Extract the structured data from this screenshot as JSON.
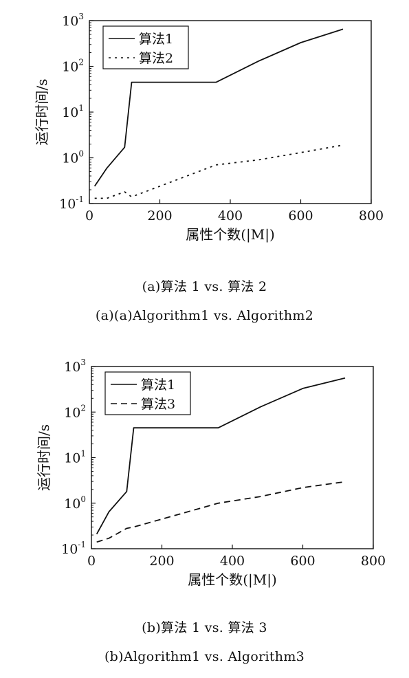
{
  "charts": [
    {
      "type": "line",
      "ylabel": "运行时间/s",
      "xlabel": "属性个数(|M|)",
      "xlim": [
        0,
        800
      ],
      "ylim": [
        0.1,
        1000
      ],
      "yscale": "log",
      "xticks": [
        0,
        200,
        400,
        600,
        800
      ],
      "yticks": [
        {
          "value": 0.1,
          "base": "10",
          "exp": "-1"
        },
        {
          "value": 1,
          "base": "10",
          "exp": "0"
        },
        {
          "value": 10,
          "base": "10",
          "exp": "1"
        },
        {
          "value": 100,
          "base": "10",
          "exp": "2"
        },
        {
          "value": 1000,
          "base": "10",
          "exp": "3"
        }
      ],
      "grid": false,
      "legend_position": "top-left",
      "series": [
        {
          "name": "算法1",
          "style": "solid",
          "x": [
            15,
            50,
            100,
            120,
            360,
            480,
            600,
            720
          ],
          "y": [
            0.24,
            0.6,
            1.7,
            45,
            45,
            130,
            330,
            650
          ]
        },
        {
          "name": "算法2",
          "style": "dotted",
          "x": [
            15,
            50,
            100,
            120,
            360,
            480,
            600,
            720
          ],
          "y": [
            0.13,
            0.13,
            0.18,
            0.14,
            0.7,
            0.9,
            1.3,
            1.9
          ]
        }
      ],
      "caption_cn": "(a)算法 1 vs. 算法 2",
      "caption_en": "(a)(a)Algorithm1  vs.  Algorithm2"
    },
    {
      "type": "line",
      "ylabel": "运行时间/s",
      "xlabel": "属性个数(|M|)",
      "xlim": [
        0,
        800
      ],
      "ylim": [
        0.1,
        1000
      ],
      "yscale": "log",
      "xticks": [
        0,
        200,
        400,
        600,
        800
      ],
      "yticks": [
        {
          "value": 0.1,
          "base": "10",
          "exp": "-1"
        },
        {
          "value": 1,
          "base": "10",
          "exp": "0"
        },
        {
          "value": 10,
          "base": "10",
          "exp": "1"
        },
        {
          "value": 100,
          "base": "10",
          "exp": "2"
        },
        {
          "value": 1000,
          "base": "10",
          "exp": "3"
        }
      ],
      "grid": false,
      "legend_position": "top-left",
      "series": [
        {
          "name": "算法1",
          "style": "solid",
          "x": [
            15,
            50,
            100,
            120,
            360,
            480,
            600,
            720
          ],
          "y": [
            0.21,
            0.65,
            1.8,
            45,
            45,
            130,
            330,
            560
          ]
        },
        {
          "name": "算法3",
          "style": "dashed",
          "x": [
            15,
            50,
            100,
            120,
            360,
            480,
            600,
            720
          ],
          "y": [
            0.14,
            0.17,
            0.28,
            0.3,
            1.0,
            1.4,
            2.2,
            2.95
          ]
        }
      ],
      "caption_cn": "(b)算法 1 vs.  算法 3",
      "caption_en": "(b)Algorithm1  vs.  Algorithm3"
    }
  ],
  "chart_data": [
    {
      "type": "line",
      "xlabel": "属性个数(|M|)",
      "ylabel": "运行时间/s",
      "xlim": [
        0,
        800
      ],
      "ylim": [
        0.1,
        1000
      ],
      "yscale": "log",
      "grid": false,
      "legend_position": "top-left",
      "series": [
        {
          "name": "算法1",
          "x": [
            15,
            50,
            100,
            120,
            360,
            480,
            600,
            720
          ],
          "y": [
            0.24,
            0.6,
            1.7,
            45,
            45,
            130,
            330,
            650
          ]
        },
        {
          "name": "算法2",
          "x": [
            15,
            50,
            100,
            120,
            360,
            480,
            600,
            720
          ],
          "y": [
            0.13,
            0.13,
            0.18,
            0.14,
            0.7,
            0.9,
            1.3,
            1.9
          ]
        }
      ]
    },
    {
      "type": "line",
      "xlabel": "属性个数(|M|)",
      "ylabel": "运行时间/s",
      "xlim": [
        0,
        800
      ],
      "ylim": [
        0.1,
        1000
      ],
      "yscale": "log",
      "grid": false,
      "legend_position": "top-left",
      "series": [
        {
          "name": "算法1",
          "x": [
            15,
            50,
            100,
            120,
            360,
            480,
            600,
            720
          ],
          "y": [
            0.21,
            0.65,
            1.8,
            45,
            45,
            130,
            330,
            560
          ]
        },
        {
          "name": "算法3",
          "x": [
            15,
            50,
            100,
            120,
            360,
            480,
            600,
            720
          ],
          "y": [
            0.14,
            0.17,
            0.28,
            0.3,
            1.0,
            1.4,
            2.2,
            2.95
          ]
        }
      ]
    }
  ]
}
